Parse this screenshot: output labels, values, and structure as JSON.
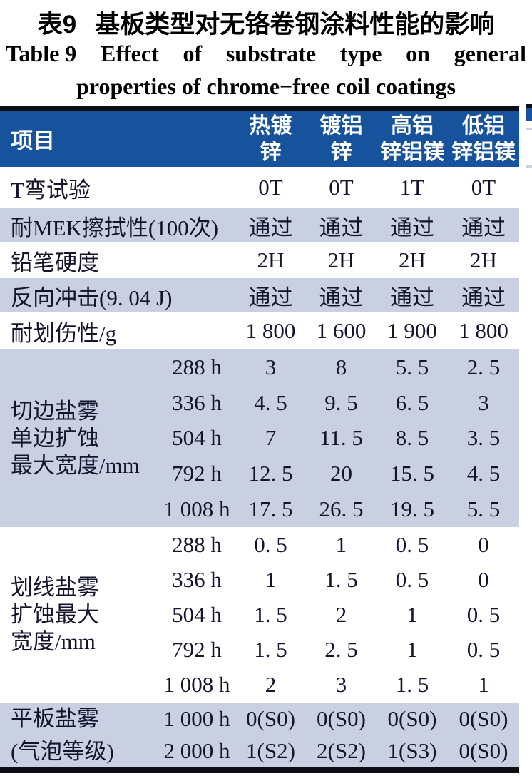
{
  "title": {
    "zh_label": "表9",
    "zh_text": "基板类型对无铬卷钢涂料性能的影响",
    "en_line1_words": [
      "Table 9",
      "Effect",
      "of",
      "substrate",
      "type",
      "on",
      "general"
    ],
    "en_line2": "properties of chrome−free coil coatings"
  },
  "colors": {
    "header_bg": "#16539c",
    "shaded_row_bg": "#c8d0e2",
    "border": "#0d0d14",
    "body_text": "#14142c",
    "header_text": "#ffffff"
  },
  "table": {
    "header": {
      "item_col": "项目",
      "columns": [
        {
          "line1": "热镀",
          "line2": "锌"
        },
        {
          "line1": "镀铝",
          "line2": "锌"
        },
        {
          "line1": "高铝",
          "line2": "锌铝镁"
        },
        {
          "line1": "低铝",
          "line2": "锌铝镁"
        }
      ]
    },
    "simple_rows": [
      {
        "label": "T弯试验",
        "values": [
          "0T",
          "0T",
          "1T",
          "0T"
        ]
      },
      {
        "label": "耐MEK擦拭性(100次)",
        "values": [
          "通过",
          "通过",
          "通过",
          "通过"
        ]
      },
      {
        "label": "铅笔硬度",
        "values": [
          "2H",
          "2H",
          "2H",
          "2H"
        ]
      },
      {
        "label": "反向冲击(9. 04 J)",
        "values": [
          "通过",
          "通过",
          "通过",
          "通过"
        ]
      },
      {
        "label": "耐划伤性/g",
        "values": [
          "1 800",
          "1 600",
          "1 900",
          "1 800"
        ]
      }
    ],
    "group_rows": [
      {
        "label_lines": [
          "切边盐雾",
          "单边扩蚀",
          "最大宽度/mm"
        ],
        "sub_rows": [
          {
            "time": "288 h",
            "values": [
              "3",
              "8",
              "5. 5",
              "2. 5"
            ]
          },
          {
            "time": "336 h",
            "values": [
              "4. 5",
              "9. 5",
              "6. 5",
              "3"
            ]
          },
          {
            "time": "504 h",
            "values": [
              "7",
              "11. 5",
              "8. 5",
              "3. 5"
            ]
          },
          {
            "time": "792 h",
            "values": [
              "12. 5",
              "20",
              "15. 5",
              "4. 5"
            ]
          },
          {
            "time": "1 008 h",
            "values": [
              "17. 5",
              "26. 5",
              "19. 5",
              "5. 5"
            ]
          }
        ]
      },
      {
        "label_lines": [
          "划线盐雾",
          "扩蚀最大",
          "宽度/mm"
        ],
        "sub_rows": [
          {
            "time": "288 h",
            "values": [
              "0. 5",
              "1",
              "0. 5",
              "0"
            ]
          },
          {
            "time": "336 h",
            "values": [
              "1",
              "1. 5",
              "0. 5",
              "0"
            ]
          },
          {
            "time": "504 h",
            "values": [
              "1. 5",
              "2",
              "1",
              "0. 5"
            ]
          },
          {
            "time": "792 h",
            "values": [
              "1. 5",
              "2. 5",
              "1",
              "0. 5"
            ]
          },
          {
            "time": "1 008 h",
            "values": [
              "2",
              "3",
              "1. 5",
              "1"
            ]
          }
        ]
      },
      {
        "label_lines": [
          "平板盐雾",
          "(气泡等级)"
        ],
        "sub_rows": [
          {
            "time": "1 000 h",
            "values": [
              "0(S0)",
              "0(S0)",
              "0(S0)",
              "0(S0)"
            ]
          },
          {
            "time": "2 000 h",
            "values": [
              "1(S2)",
              "2(S2)",
              "1(S3)",
              "0(S0)"
            ]
          }
        ]
      }
    ]
  }
}
